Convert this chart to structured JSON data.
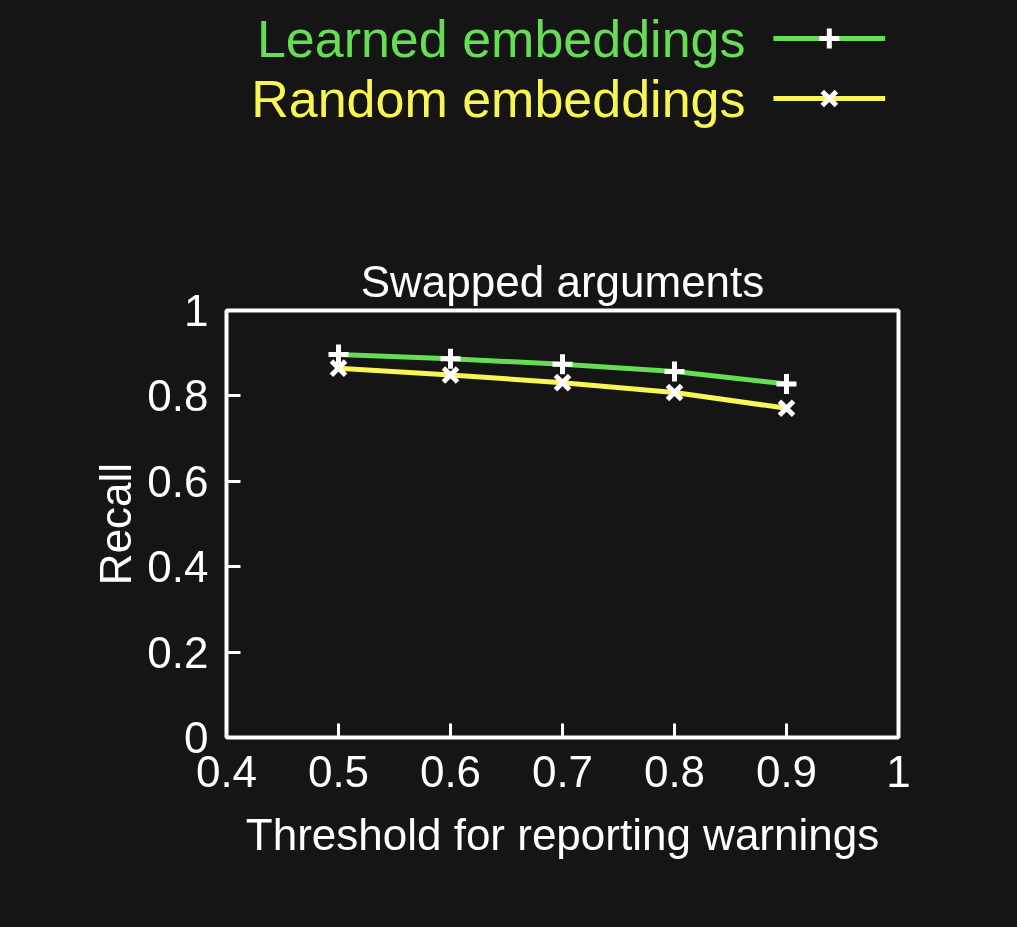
{
  "chart_data": {
    "type": "line",
    "title": "Swapped arguments",
    "xlabel": "Threshold for reporting warnings",
    "ylabel": "Recall",
    "x": [
      0.5,
      0.6,
      0.7,
      0.8,
      0.9
    ],
    "series": [
      {
        "name": "Learned embeddings",
        "color": "#66dd55",
        "marker": "cross",
        "values": [
          0.897,
          0.887,
          0.874,
          0.857,
          0.828
        ]
      },
      {
        "name": "Random embeddings",
        "color": "#f8f555",
        "marker": "x",
        "values": [
          0.865,
          0.849,
          0.831,
          0.808,
          0.771
        ]
      }
    ],
    "xlim": [
      0.4,
      1
    ],
    "xticks": [
      0.4,
      0.5,
      0.6,
      0.7,
      0.8,
      0.9,
      1
    ],
    "ylim": [
      0,
      1
    ],
    "yticks": [
      0,
      0.2,
      0.4,
      0.6,
      0.8,
      1
    ],
    "grid": false,
    "legend": "top right",
    "line_style": "solid"
  }
}
